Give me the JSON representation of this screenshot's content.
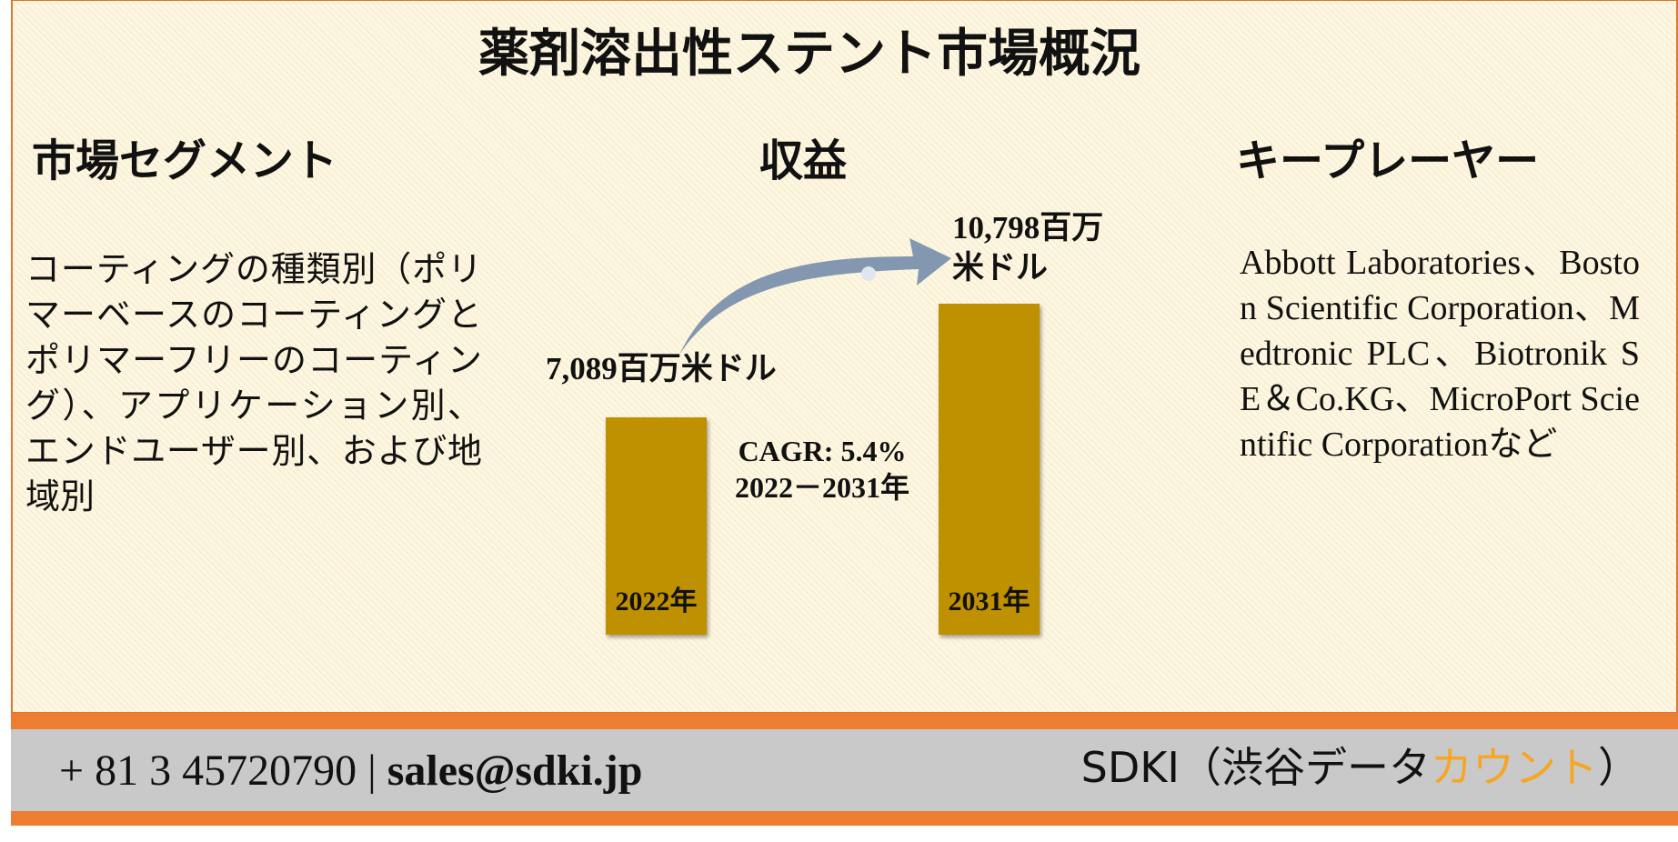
{
  "header": {
    "title": "薬剤溶出性ステント市場概況"
  },
  "segments": {
    "heading": "市場セグメント",
    "text": "コーティングの種類別（ポリマーベースのコーティングとポリマーフリーのコーティング）、アプリケーション別、エンドユーザー別、および地域別"
  },
  "players": {
    "heading": "キープレーヤー",
    "text": "Abbott Laboratories、Boston Scientific Corporation、Medtronic PLC、Biotronik SE＆Co.KG、MicroPort Scientific Corporationなど"
  },
  "chart_data": {
    "type": "bar",
    "title": "収益",
    "categories": [
      "2022年",
      "2031年"
    ],
    "values": [
      7089,
      10798
    ],
    "value_labels": [
      "7,089百万米ドル",
      "10,798百万米ドル"
    ],
    "color": "#bf9000",
    "annotations": [
      "CAGR: 5.4%",
      "2022－2031年"
    ]
  },
  "footer": {
    "phone": "+ 81 3 45720790",
    "separator": "|",
    "email": "sales@sdki.jp",
    "brand": "SDKI（渋谷データ",
    "brand_accent": "カウント",
    "brand_end": "）"
  }
}
